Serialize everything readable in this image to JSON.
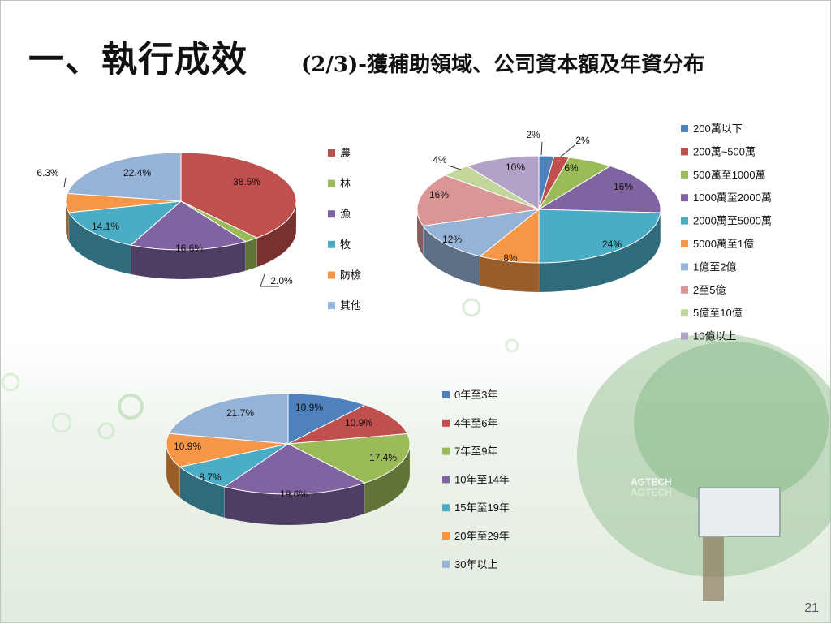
{
  "slide": {
    "title_main": "一、執行成效",
    "title_sub": "(2/3)-獲補助領域、公司資本額及年資分布",
    "page_number": "21",
    "background_art_text": [
      "AGTECH",
      "AGTECH"
    ]
  },
  "chart_data": [
    {
      "type": "pie",
      "style": "3d",
      "legend_position": "right",
      "categories": [
        "農",
        "林",
        "漁",
        "牧",
        "防檢",
        "其他"
      ],
      "values": [
        38.5,
        2.0,
        16.6,
        14.1,
        6.3,
        22.4
      ],
      "labels": [
        "38.5%",
        "2.0%",
        "16.6%",
        "14.1%",
        "6.3%",
        "22.4%"
      ],
      "colors": [
        "#C0504D",
        "#9BBB59",
        "#8064A2",
        "#4BACC6",
        "#F79646",
        "#95B3D7"
      ]
    },
    {
      "type": "pie",
      "style": "3d",
      "legend_position": "right",
      "categories": [
        "200萬以下",
        "200萬~500萬",
        "500萬至1000萬",
        "1000萬至2000萬",
        "2000萬至5000萬",
        "5000萬至1億",
        "1億至2億",
        "2至5億",
        "5億至10億",
        "10億以上"
      ],
      "values": [
        2,
        2,
        6,
        16,
        24,
        8,
        12,
        16,
        4,
        10
      ],
      "labels": [
        "2%",
        "2%",
        "6%",
        "16%",
        "24%",
        "8%",
        "12%",
        "16%",
        "4%",
        "10%"
      ],
      "colors": [
        "#4F81BD",
        "#C0504D",
        "#9BBB59",
        "#8064A2",
        "#4BACC6",
        "#F79646",
        "#95B3D7",
        "#D99694",
        "#C3D69B",
        "#B3A2C7"
      ]
    },
    {
      "type": "pie",
      "style": "3d",
      "legend_position": "right",
      "categories": [
        "0年至3年",
        "4年至6年",
        "7年至9年",
        "10年至14年",
        "15年至19年",
        "20年至29年",
        "30年以上"
      ],
      "values": [
        10.9,
        10.9,
        17.4,
        19.6,
        8.7,
        10.9,
        21.7
      ],
      "labels": [
        "10.9%",
        "10.9%",
        "17.4%",
        "19.6%",
        "8.7%",
        "10.9%",
        "21.7%"
      ],
      "colors": [
        "#4F81BD",
        "#C0504D",
        "#9BBB59",
        "#8064A2",
        "#4BACC6",
        "#F79646",
        "#95B3D7"
      ]
    }
  ]
}
